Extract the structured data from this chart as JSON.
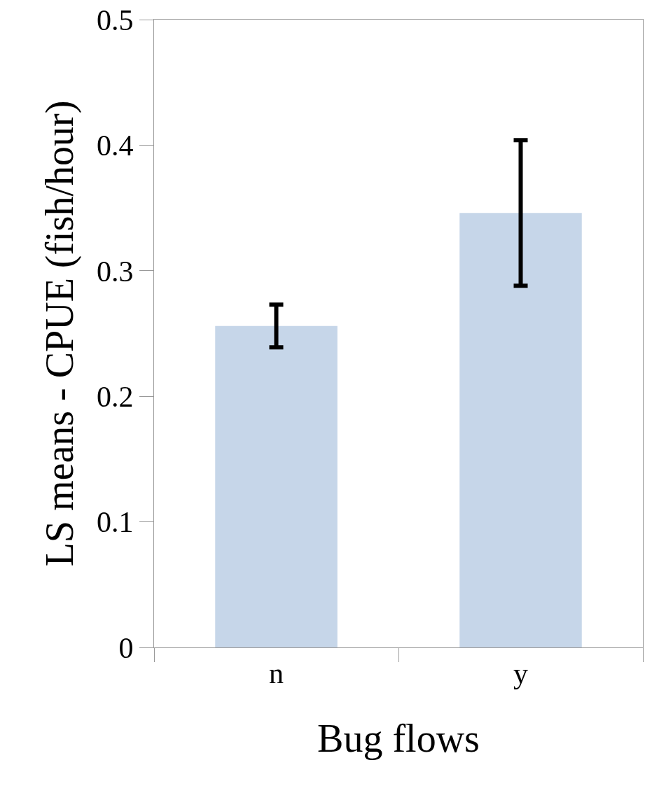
{
  "chart_data": {
    "type": "bar",
    "xlabel": "Bug flows",
    "ylabel": "LS means - CPUE (fish/hour)",
    "categories": [
      "n",
      "y"
    ],
    "values": [
      0.256,
      0.346
    ],
    "errors": [
      0.017,
      0.058
    ],
    "color": "#c6d6e9",
    "ylim": [
      0,
      0.5
    ],
    "yticks": [
      0,
      0.1,
      0.2,
      0.3,
      0.4,
      0.5
    ]
  }
}
